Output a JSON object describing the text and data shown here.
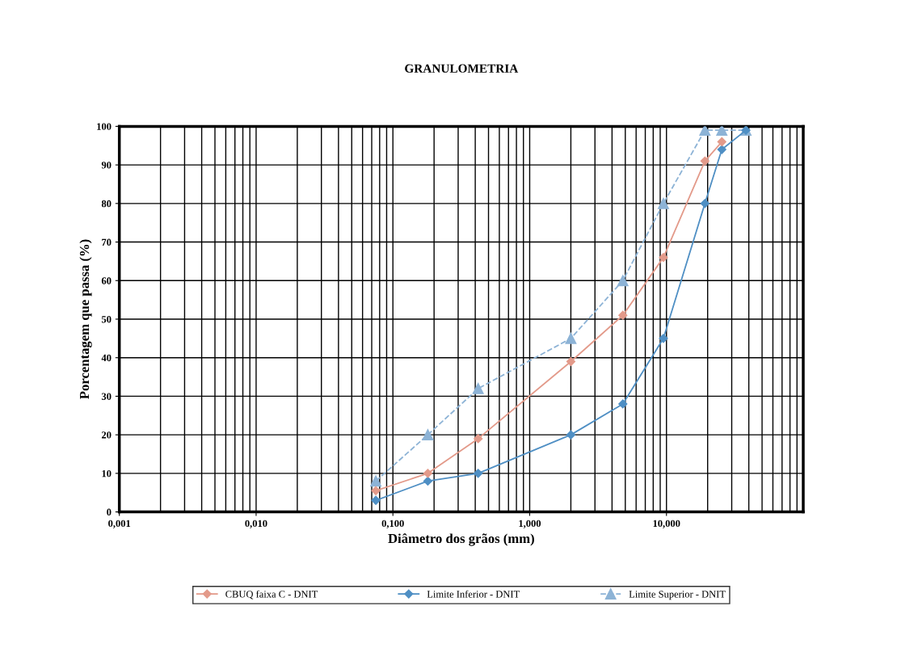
{
  "chart_data": {
    "type": "line",
    "title": "GRANULOMETRIA",
    "xlabel": "Diâmetro dos grãos (mm)",
    "ylabel": "Porcentagem que passa (%)",
    "log": "x",
    "grid": true,
    "legend": "bottom",
    "xlim": [
      0.001,
      100
    ],
    "xticks": [
      {
        "value": 0.001,
        "label": "0,001"
      },
      {
        "value": 0.01,
        "label": "0,010"
      },
      {
        "value": 0.1,
        "label": "0,100"
      },
      {
        "value": 1,
        "label": "1,000"
      },
      {
        "value": 10,
        "label": "10,000"
      }
    ],
    "ylim": [
      0,
      100
    ],
    "yticks": [
      0,
      10,
      20,
      30,
      40,
      50,
      60,
      70,
      80,
      90,
      100
    ],
    "series": [
      {
        "name": "CBUQ faixa C - DNIT",
        "color": "#e39a8a",
        "marker": "diamond",
        "line_style": "solid",
        "x": [
          0.075,
          0.18,
          0.42,
          2.0,
          4.8,
          9.5,
          19.1,
          25.4
        ],
        "values": [
          5.5,
          10,
          19,
          39,
          51,
          66,
          91,
          96
        ]
      },
      {
        "name": "Limite Inferior - DNIT",
        "color": "#4f8fc4",
        "marker": "diamond",
        "line_style": "solid",
        "x": [
          0.075,
          0.18,
          0.42,
          2.0,
          4.8,
          9.5,
          19.1,
          25.4,
          38.1
        ],
        "values": [
          3,
          8,
          10,
          20,
          28,
          45,
          80,
          94,
          99
        ]
      },
      {
        "name": "Limite Superior - DNIT",
        "color": "#8db3d6",
        "marker": "triangle",
        "line_style": "dashed",
        "x": [
          0.075,
          0.18,
          0.42,
          2.0,
          4.8,
          9.5,
          19.1,
          25.4,
          38.1
        ],
        "values": [
          8,
          20,
          32,
          45,
          60,
          80,
          99,
          99,
          99
        ]
      }
    ]
  }
}
